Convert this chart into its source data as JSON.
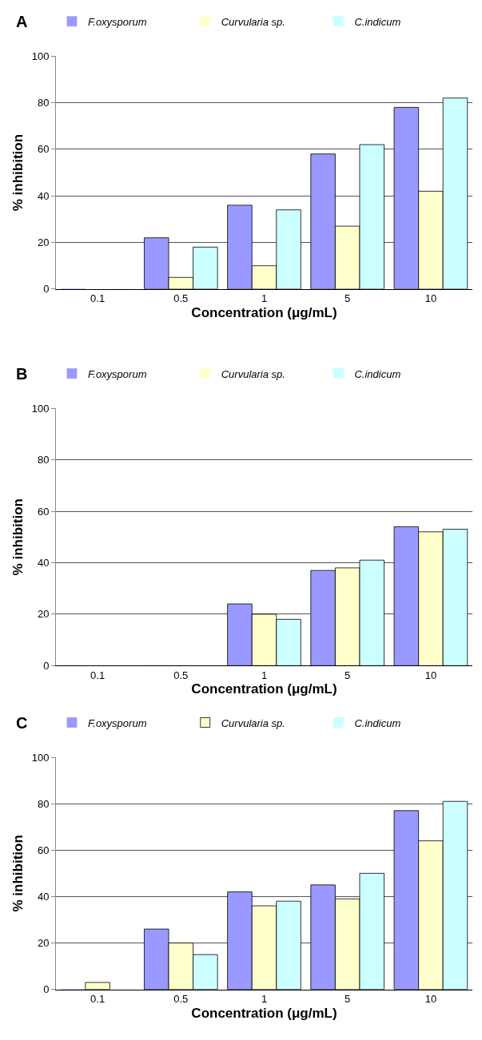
{
  "chart_data": [
    {
      "type": "bar",
      "title": "A",
      "xlabel": "Concentration (μg/mL)",
      "ylabel": "% inhibition",
      "categories": [
        "0.1",
        "0.5",
        "1",
        "5",
        "10"
      ],
      "ylim": [
        0,
        100
      ],
      "yticks": [
        0,
        20,
        40,
        60,
        80,
        100
      ],
      "grid": "y",
      "legend": "top",
      "series": [
        {
          "name": "F.oxysporum",
          "color": "#9999ff",
          "values": [
            0,
            22,
            36,
            58,
            78
          ]
        },
        {
          "name": "Curvularia sp.",
          "color": "#ffffcc",
          "values": [
            0,
            5,
            10,
            27,
            42
          ]
        },
        {
          "name": "C.indicum",
          "color": "#ccffff",
          "values": [
            0,
            18,
            34,
            62,
            82
          ]
        }
      ]
    },
    {
      "type": "bar",
      "title": "B",
      "xlabel": "Concentration (μg/mL)",
      "ylabel": "% inhibition",
      "categories": [
        "0.1",
        "0.5",
        "1",
        "5",
        "10"
      ],
      "ylim": [
        0,
        100
      ],
      "yticks": [
        0,
        20,
        40,
        60,
        80,
        100
      ],
      "grid": "y",
      "legend": "top",
      "series": [
        {
          "name": "F.oxysporum",
          "color": "#9999ff",
          "values": [
            0,
            0,
            24,
            37,
            54
          ]
        },
        {
          "name": "Curvularia sp.",
          "color": "#ffffcc",
          "values": [
            0,
            0,
            20,
            38,
            52
          ]
        },
        {
          "name": "C.indicum",
          "color": "#ccffff",
          "values": [
            0,
            0,
            18,
            41,
            53
          ]
        }
      ]
    },
    {
      "type": "bar",
      "title": "C",
      "xlabel": "Concentration (μg/mL)",
      "ylabel": "% inhibition",
      "categories": [
        "0.1",
        "0.5",
        "1",
        "5",
        "10"
      ],
      "ylim": [
        0,
        100
      ],
      "yticks": [
        0,
        20,
        40,
        60,
        80,
        100
      ],
      "grid": "y",
      "legend": "top",
      "series": [
        {
          "name": "F.oxysporum",
          "color": "#9999ff",
          "values": [
            0,
            26,
            42,
            45,
            77
          ]
        },
        {
          "name": "Curvularia sp.",
          "color": "#ffffcc",
          "values": [
            3,
            20,
            36,
            39,
            64
          ]
        },
        {
          "name": "C.indicum",
          "color": "#ccffff",
          "values": [
            0,
            15,
            38,
            50,
            81
          ]
        }
      ]
    }
  ]
}
